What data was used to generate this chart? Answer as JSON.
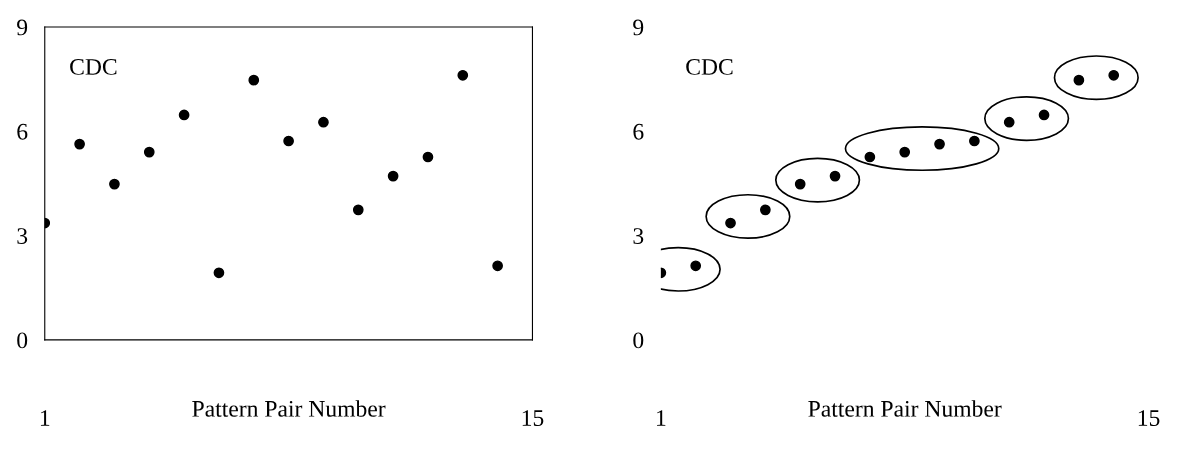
{
  "chart_data": [
    {
      "type": "scatter",
      "xlabel": "Pattern Pair Number",
      "annotations": [
        "CDC"
      ],
      "x": [
        1,
        2,
        3,
        4,
        5,
        6,
        7,
        8,
        9,
        10,
        11,
        12,
        13,
        14
      ],
      "xlim": [
        1,
        15
      ],
      "xticks": [
        1,
        15
      ],
      "ylim": [
        0,
        9
      ],
      "yticks": [
        0,
        3,
        6,
        9
      ],
      "marker": "circle",
      "series": [
        {
          "color": "#000000",
          "values": [
            3.36,
            5.63,
            4.48,
            5.4,
            6.47,
            1.93,
            7.47,
            5.72,
            6.26,
            3.74,
            4.71,
            5.26,
            7.61,
            2.13
          ]
        }
      ]
    },
    {
      "type": "scatter",
      "xlabel": "Pattern Pair Number",
      "annotations": [
        "CDC"
      ],
      "x": [
        1,
        2,
        3,
        4,
        5,
        6,
        7,
        8,
        9,
        10,
        11,
        12,
        13,
        14
      ],
      "xlim": [
        1,
        15
      ],
      "xticks": [
        1,
        15
      ],
      "ylim": [
        0,
        9
      ],
      "yticks": [
        0,
        3,
        6,
        9
      ],
      "marker": "circle",
      "series": [
        {
          "color": "#000000",
          "values": [
            1.93,
            2.13,
            3.36,
            3.74,
            4.48,
            4.71,
            5.26,
            5.4,
            5.63,
            5.72,
            6.26,
            6.47,
            7.47,
            7.61
          ]
        }
      ]
    }
  ]
}
